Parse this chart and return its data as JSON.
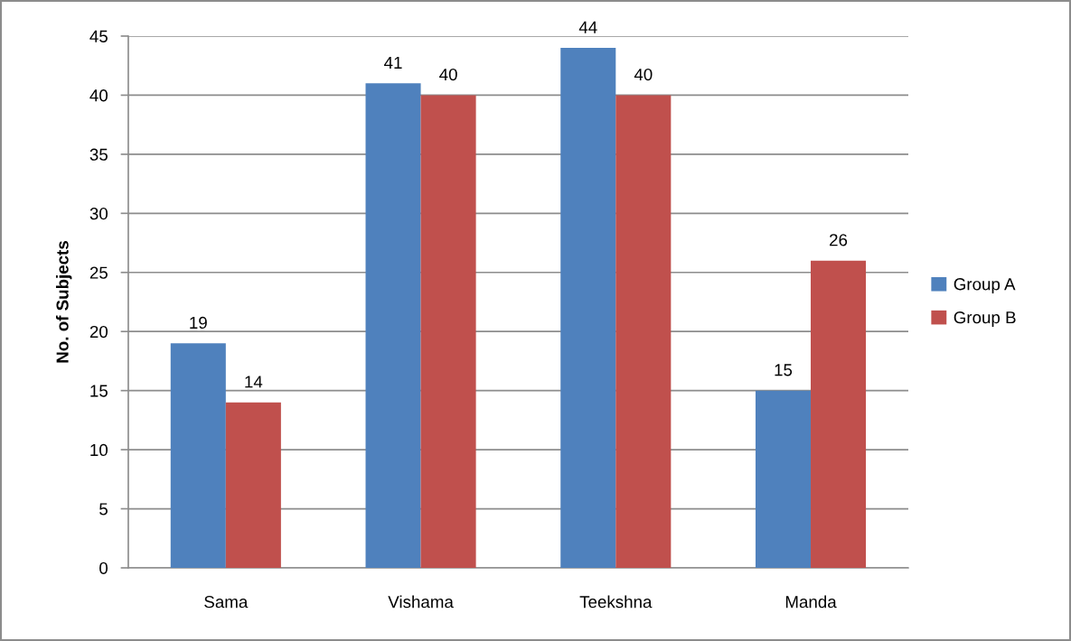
{
  "chart_data": {
    "type": "bar",
    "ylabel": "No. of Subjects",
    "categories": [
      "Sama",
      "Vishama",
      "Teekshna",
      "Manda"
    ],
    "series": [
      {
        "name": "Group A",
        "color": "#4f81bd",
        "values": [
          19,
          41,
          44,
          15
        ]
      },
      {
        "name": "Group B",
        "color": "#c0504d",
        "values": [
          14,
          40,
          40,
          26
        ]
      }
    ],
    "ylim": [
      0,
      45
    ],
    "yticks": [
      0,
      5,
      10,
      15,
      20,
      25,
      30,
      35,
      40,
      45
    ],
    "grid": "y",
    "legend": "right",
    "data_labels": true
  }
}
